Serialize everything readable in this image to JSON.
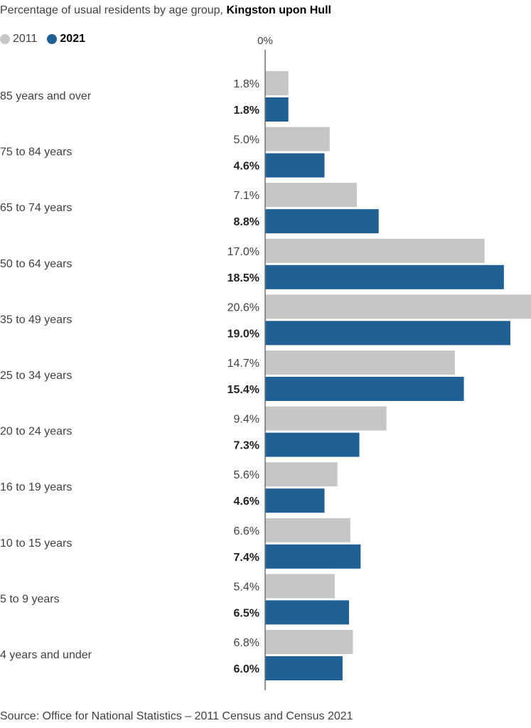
{
  "title": {
    "prefix": "Percentage of usual residents by age group,",
    "place": "Kingston upon Hull"
  },
  "legend": [
    {
      "label": "2011",
      "color": "#c6c6c6"
    },
    {
      "label": "2021",
      "color": "#206095"
    }
  ],
  "axis": {
    "zero_label": "0%"
  },
  "source": "Source: Office for National Statistics – 2011 Census and Census 2021",
  "chart_data": {
    "type": "bar",
    "orientation": "horizontal",
    "categories": [
      "85 years and over",
      "75 to 84 years",
      "65 to 74 years",
      "50 to 64 years",
      "35 to 49 years",
      "25 to 34 years",
      "20 to 24 years",
      "16 to 19 years",
      "10 to 15 years",
      "5 to 9 years",
      "4 years and under"
    ],
    "series": [
      {
        "name": "2011",
        "color": "#c6c6c6",
        "values": [
          1.8,
          5.0,
          7.1,
          17.0,
          20.6,
          14.7,
          9.4,
          5.6,
          6.6,
          5.4,
          6.8
        ],
        "labels": [
          "1.8%",
          "5.0%",
          "7.1%",
          "17.0%",
          "20.6%",
          "14.7%",
          "9.4%",
          "5.6%",
          "6.6%",
          "5.4%",
          "6.8%"
        ]
      },
      {
        "name": "2021",
        "color": "#206095",
        "values": [
          1.8,
          4.6,
          8.8,
          18.5,
          19.0,
          15.4,
          7.3,
          4.6,
          7.4,
          6.5,
          6.0
        ],
        "labels": [
          "1.8%",
          "4.6%",
          "8.8%",
          "18.5%",
          "19.0%",
          "15.4%",
          "7.3%",
          "4.6%",
          "7.4%",
          "6.5%",
          "6.0%"
        ]
      }
    ],
    "xlim": [
      0,
      20.6
    ],
    "grid": false,
    "legend_position": "top-left"
  }
}
